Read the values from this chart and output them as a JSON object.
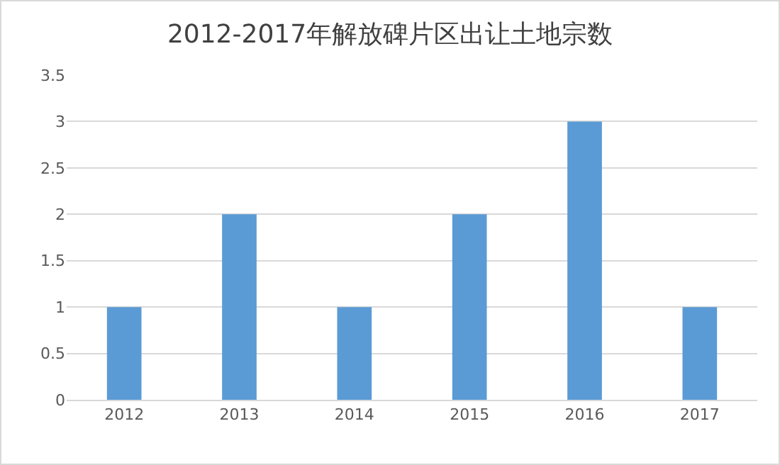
{
  "chart_data": {
    "type": "bar",
    "title": "2012-2017年解放碑片区出让土地宗数",
    "categories": [
      "2012",
      "2013",
      "2014",
      "2015",
      "2016",
      "2017"
    ],
    "values": [
      1,
      2,
      1,
      2,
      3,
      1
    ],
    "color": "#5b9bd5",
    "ylim": [
      0,
      3.5
    ],
    "yticks": [
      0,
      0.5,
      1,
      1.5,
      2,
      2.5,
      3,
      3.5
    ],
    "grid": "y"
  }
}
